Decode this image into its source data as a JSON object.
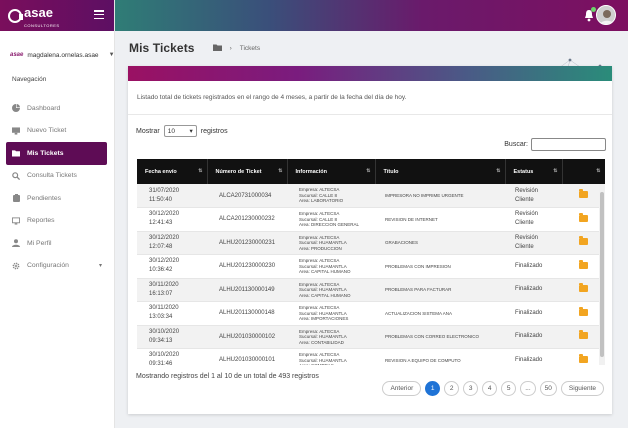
{
  "brand": {
    "name": "asae",
    "tagline": "CONSULTORES"
  },
  "user": {
    "logo": "asae",
    "name": "magdalena.ornelas.asae"
  },
  "nav": {
    "title": "Navegación",
    "items": [
      {
        "label": "Dashboard",
        "icon": "pie-chart-icon"
      },
      {
        "label": "Nuevo Ticket",
        "icon": "desktop-icon"
      },
      {
        "label": "Mis Tickets",
        "icon": "folder-icon"
      },
      {
        "label": "Consulta Tickets",
        "icon": "search-icon"
      },
      {
        "label": "Pendientes",
        "icon": "clipboard-icon"
      },
      {
        "label": "Reportes",
        "icon": "monitor-icon"
      },
      {
        "label": "Mi Perfil",
        "icon": "user-icon"
      },
      {
        "label": "Configuración",
        "icon": "gear-icon"
      }
    ]
  },
  "page": {
    "title": "Mis Tickets",
    "breadcrumb": "Tickets"
  },
  "card": {
    "description": "Listado total de tickets registrados en el rango de 4 meses, a partir de la fecha del día de hoy.",
    "show_label": "Mostrar",
    "show_value": "10",
    "records_label": "registros",
    "search_label": "Buscar:",
    "info": "Mostrando registros del 1 al 10 de un total de 493 registros"
  },
  "table": {
    "headers": [
      "Fecha envío",
      "Número de Ticket",
      "Información",
      "Título",
      "Estatus",
      ""
    ],
    "rows": [
      {
        "date1": "31/07/2020",
        "date2": "11:50:40",
        "num": "ALCA20731000034",
        "info": [
          "Empresa: ALTECSA",
          "Sucursal: CALLE 8",
          "Area: LABORATORIO"
        ],
        "title": "IMPRESORA NO IMPRIME URGENTE",
        "status1": "Revisión",
        "status2": "Cliente"
      },
      {
        "date1": "30/12/2020",
        "date2": "12:41:43",
        "num": "ALCA201230000232",
        "info": [
          "Empresa: ALTECSA",
          "Sucursal: CALLE 8",
          "Area: DIRECCION GENERAL"
        ],
        "title": "REVISION DE INTERNET",
        "status1": "Revisión",
        "status2": "Cliente"
      },
      {
        "date1": "30/12/2020",
        "date2": "12:07:48",
        "num": "ALHU201230000231",
        "info": [
          "Empresa: ALTECSA",
          "Sucursal: HUAMANTLA",
          "Area: PRODUCCION"
        ],
        "title": "GRABACIONES",
        "status1": "Revisión",
        "status2": "Cliente"
      },
      {
        "date1": "30/12/2020",
        "date2": "10:36:42",
        "num": "ALHU201230000230",
        "info": [
          "Empresa: ALTECSA",
          "Sucursal: HUAMANTLA",
          "Area: CAPITAL HUMANO"
        ],
        "title": "PROBLEMAS CON IMPRESION",
        "status1": "Finalizado",
        "status2": ""
      },
      {
        "date1": "30/11/2020",
        "date2": "16:13:07",
        "num": "ALHU201130000149",
        "info": [
          "Empresa: ALTECSA",
          "Sucursal: HUAMANTLA",
          "Area: CAPITAL HUMANO"
        ],
        "title": "PROBLEMAS PARA FACTURAR",
        "status1": "Finalizado",
        "status2": ""
      },
      {
        "date1": "30/11/2020",
        "date2": "13:03:34",
        "num": "ALHU201130000148",
        "info": [
          "Empresa: ALTECSA",
          "Sucursal: HUAMANTLA",
          "Area: IMPORTACIONES"
        ],
        "title": "ACTUALIZACION SISTEMA ANA",
        "status1": "Finalizado",
        "status2": ""
      },
      {
        "date1": "30/10/2020",
        "date2": "09:34:13",
        "num": "ALHU201030000102",
        "info": [
          "Empresa: ALTECSA",
          "Sucursal: HUAMANTLA",
          "Area: CONTABILIDAD"
        ],
        "title": "PROBLEMAS CON CORREO ELECTRONICO",
        "status1": "Finalizado",
        "status2": ""
      },
      {
        "date1": "30/10/2020",
        "date2": "09:31:46",
        "num": "ALHU201030000101",
        "info": [
          "Empresa: ALTECSA",
          "Sucursal: HUAMANTLA",
          "Area: COMPRAS"
        ],
        "title": "REVISION A EQUIPO DE COMPUTO",
        "status1": "Finalizado",
        "status2": ""
      }
    ]
  },
  "pagination": {
    "prev": "Anterior",
    "pages": [
      "1",
      "2",
      "3",
      "4",
      "5",
      "...",
      "50"
    ],
    "next": "Siguiente",
    "current": "1"
  },
  "colors": {
    "brand": "#5e0c55",
    "accent_blue": "#1f73d6",
    "folder": "#f2a521"
  }
}
